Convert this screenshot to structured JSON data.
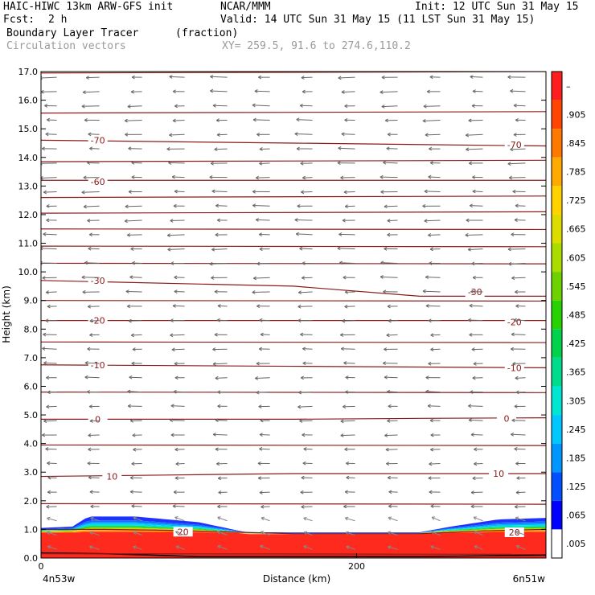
{
  "header": {
    "model": "HAIC-HIWC 13km ARW-GFS init",
    "org": "NCAR/MMM",
    "init": "Init: 12 UTC Sun 31 May 15",
    "fcst_label": "Fcst:",
    "fcst_value": "2 h",
    "valid": "Valid: 14 UTC Sun 31 May 15 (11 LST Sun 31 May 15)",
    "field_name": "Boundary Layer Tracer",
    "field_units": "(fraction)",
    "vector_name": "Circulation vectors",
    "xy_range": "XY= 259.5, 91.6 to 274.6,110.2"
  },
  "chart_data": {
    "type": "heatmap",
    "ylabel": "Height (km)",
    "xlabel": "Distance (km)",
    "x_left_label": "4n53w",
    "x_right_label": "6n51w",
    "ylim": [
      0,
      17
    ],
    "xlim": [
      0,
      320
    ],
    "yticks": [
      "0.0",
      "1.0",
      "2.0",
      "3.0",
      "4.0",
      "5.0",
      "6.0",
      "7.0",
      "8.0",
      "9.0",
      "10.0",
      "11.0",
      "12.0",
      "13.0",
      "14.0",
      "15.0",
      "16.0",
      "17.0"
    ],
    "xticks": [
      {
        "value": 0,
        "label": "0"
      },
      {
        "value": 200,
        "label": "200"
      }
    ],
    "temperature_contours": [
      {
        "label": "20",
        "points": [
          [
            0,
            1.0
          ],
          [
            40,
            1.0
          ],
          [
            80,
            0.97
          ],
          [
            160,
            0.85
          ],
          [
            240,
            0.85
          ],
          [
            280,
            0.95
          ],
          [
            320,
            1.0
          ]
        ],
        "label_at": [
          [
            90,
            0.92
          ],
          [
            300,
            0.9
          ]
        ]
      },
      {
        "label": "10",
        "points": [
          [
            0,
            2.85
          ],
          [
            80,
            2.9
          ],
          [
            160,
            2.95
          ],
          [
            240,
            2.95
          ],
          [
            320,
            2.95
          ]
        ],
        "label_at": [
          [
            45,
            2.85
          ],
          [
            290,
            2.95
          ]
        ]
      },
      {
        "label": "0",
        "points": [
          [
            0,
            4.85
          ],
          [
            80,
            4.85
          ],
          [
            160,
            4.85
          ],
          [
            240,
            4.88
          ],
          [
            320,
            4.9
          ]
        ],
        "label_at": [
          [
            36,
            4.85
          ],
          [
            295,
            4.88
          ]
        ]
      },
      {
        "label": "-10",
        "points": [
          [
            0,
            6.75
          ],
          [
            160,
            6.7
          ],
          [
            320,
            6.65
          ]
        ],
        "label_at": [
          [
            36,
            6.75
          ],
          [
            300,
            6.65
          ]
        ]
      },
      {
        "label": "-20",
        "points": [
          [
            0,
            8.3
          ],
          [
            160,
            8.3
          ],
          [
            320,
            8.3
          ]
        ],
        "label_at": [
          [
            36,
            8.3
          ],
          [
            300,
            8.25
          ]
        ]
      },
      {
        "label": "-30",
        "points": [
          [
            0,
            9.7
          ],
          [
            160,
            9.5
          ],
          [
            240,
            9.15
          ],
          [
            320,
            9.15
          ]
        ],
        "label_at": [
          [
            36,
            9.7
          ],
          [
            275,
            9.3
          ]
        ]
      },
      {
        "label": "-60",
        "points": [
          [
            0,
            13.2
          ],
          [
            160,
            13.2
          ],
          [
            320,
            13.2
          ]
        ],
        "label_at": [
          [
            36,
            13.15
          ],
          null
        ]
      },
      {
        "label": "-70",
        "points": [
          [
            0,
            14.6
          ],
          [
            160,
            14.5
          ],
          [
            320,
            14.4
          ]
        ],
        "label_at": [
          [
            36,
            14.6
          ],
          [
            300,
            14.45
          ]
        ]
      }
    ],
    "extra_contour_heights": [
      0.15,
      1.9,
      3.95,
      5.8,
      7.55,
      9.0,
      10.3,
      10.9,
      11.5,
      12.05,
      12.6,
      13.85,
      15.55,
      16.95
    ],
    "tracer": {
      "description_levels": "tracer fraction near 1.0 below ~0.9 km, decreasing upward to 0.0 near 1.5 km",
      "top_km_profile": [
        [
          0,
          1.05
        ],
        [
          20,
          1.1
        ],
        [
          30,
          1.45
        ],
        [
          60,
          1.45
        ],
        [
          100,
          1.25
        ],
        [
          130,
          0.9
        ],
        [
          240,
          0.9
        ],
        [
          260,
          1.1
        ],
        [
          290,
          1.35
        ],
        [
          320,
          1.4
        ]
      ]
    },
    "colorbar": {
      "labels": [
        "–",
        ".905",
        ".845",
        ".785",
        ".725",
        ".665",
        ".605",
        ".545",
        ".485",
        ".425",
        ".365",
        ".305",
        ".245",
        ".185",
        ".125",
        ".065",
        ".005"
      ],
      "colors": [
        "#ffffff",
        "#0000ff",
        "#0050ff",
        "#0096ff",
        "#00c8ff",
        "#00e6d2",
        "#00dc8c",
        "#00d24b",
        "#28d200",
        "#6ed200",
        "#aadc00",
        "#dcdc00",
        "#ffd200",
        "#ffaa00",
        "#ff7800",
        "#ff4600",
        "#ff1e1e"
      ]
    },
    "vectors": {
      "description": "circulation vectors, mostly westward (pointing left) at upper levels, weak near surface",
      "upper_u": -1.0,
      "lower_u": -0.3
    }
  }
}
